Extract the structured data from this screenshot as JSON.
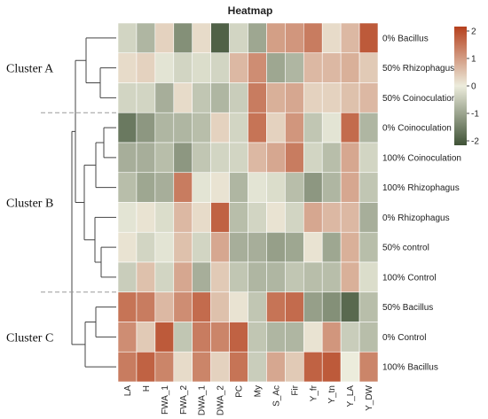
{
  "chart_data": {
    "type": "heatmap",
    "title": "Heatmap",
    "columns": [
      "LA",
      "H",
      "FWA_1",
      "FWA_2",
      "DWA_1",
      "DWA_2",
      "PC",
      "My",
      "S_Ac",
      "Fir",
      "Y_fr",
      "Y_tn",
      "Y_LA",
      "Y_DW"
    ],
    "rows": [
      "0% Bacillus",
      "50% Rhizophagus",
      "50% Coinoculation",
      "0% Coinoculation",
      "100% Coinoculation",
      "100% Rhizophagus",
      "0% Rhizophagus",
      "50% control",
      "100% Control",
      "50% Bacillus",
      "0% Control",
      "100% Bacillus"
    ],
    "values": [
      [
        -0.3,
        -0.7,
        0.3,
        -1.2,
        0.2,
        -1.8,
        -0.3,
        -0.9,
        0.9,
        1.0,
        1.3,
        0.2,
        0.6,
        1.7
      ],
      [
        0.2,
        0.3,
        -0.1,
        -0.3,
        -0.2,
        -0.3,
        0.6,
        1.1,
        -0.9,
        -0.7,
        0.6,
        0.6,
        0.7,
        0.4
      ],
      [
        -0.3,
        -0.3,
        -0.8,
        0.2,
        -0.5,
        -0.7,
        -0.4,
        1.3,
        0.7,
        0.8,
        0.3,
        0.3,
        0.5,
        0.6
      ],
      [
        -1.5,
        -1.1,
        -0.7,
        -0.7,
        -0.6,
        0.3,
        -0.3,
        1.4,
        0.3,
        1.0,
        -0.5,
        -0.1,
        1.5,
        -0.7
      ],
      [
        -0.8,
        -0.8,
        -0.6,
        -1.1,
        -0.5,
        -0.3,
        -0.3,
        0.6,
        0.8,
        1.3,
        -0.3,
        -0.6,
        0.8,
        -0.3
      ],
      [
        -0.6,
        -0.9,
        -0.8,
        1.3,
        -0.1,
        0.1,
        -0.7,
        -0.1,
        -0.2,
        -0.6,
        -1.1,
        -0.7,
        0.8,
        -0.5
      ],
      [
        -0.1,
        0.1,
        -0.2,
        0.6,
        0.2,
        1.6,
        -0.6,
        -0.3,
        0.1,
        -0.3,
        0.8,
        0.6,
        0.6,
        -0.8
      ],
      [
        0.1,
        -0.3,
        -0.1,
        0.5,
        -0.3,
        0.8,
        -0.8,
        -0.8,
        -1.0,
        -0.9,
        0.1,
        -0.9,
        0.7,
        -0.6
      ],
      [
        -0.4,
        0.5,
        -0.3,
        0.8,
        -0.8,
        0.4,
        -0.5,
        -0.7,
        -0.7,
        -0.5,
        -0.6,
        -0.6,
        0.7,
        -0.2
      ],
      [
        1.4,
        1.3,
        0.6,
        1.1,
        1.5,
        0.5,
        0.1,
        -0.5,
        1.4,
        1.5,
        -1.0,
        -1.2,
        -1.7,
        -0.6
      ],
      [
        1.1,
        0.4,
        1.7,
        -0.5,
        1.3,
        1.2,
        1.6,
        -0.5,
        -0.7,
        -0.7,
        0.1,
        1.0,
        -0.4,
        -0.6
      ],
      [
        1.3,
        1.6,
        1.2,
        0.2,
        1.2,
        0.3,
        1.4,
        -0.4,
        0.8,
        0.4,
        1.6,
        1.7,
        0.0,
        1.2
      ]
    ],
    "clusters": [
      {
        "label": "Cluster A",
        "rows": [
          "0% Bacillus",
          "50% Rhizophagus",
          "50% Coinoculation"
        ]
      },
      {
        "label": "Cluster B",
        "rows": [
          "0% Coinoculation",
          "100% Coinoculation",
          "100% Rhizophagus",
          "0% Rhizophagus",
          "50% control",
          "100% Control"
        ]
      },
      {
        "label": "Cluster C",
        "rows": [
          "50% Bacillus",
          "0% Control",
          "100% Bacillus"
        ]
      }
    ],
    "legend": {
      "position": "right",
      "range": [
        -2,
        2
      ],
      "ticks": [
        "2",
        "1",
        "0",
        "-1",
        "-2"
      ],
      "colors": {
        "high": "#b5401d",
        "mid": "#ececdc",
        "low": "#3f5236"
      }
    }
  }
}
